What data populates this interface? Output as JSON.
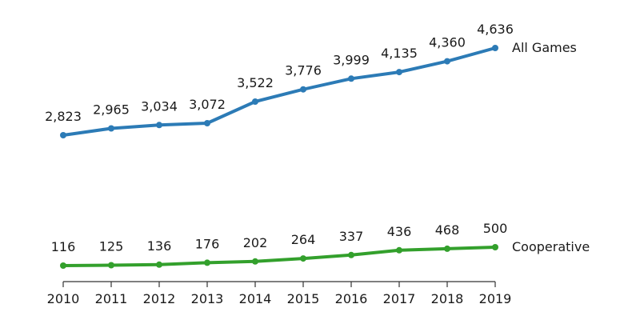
{
  "chart_data": {
    "type": "line",
    "x": [
      2010,
      2011,
      2012,
      2013,
      2014,
      2015,
      2016,
      2017,
      2018,
      2019
    ],
    "x_tick_labels": [
      "2010",
      "2011",
      "2012",
      "2013",
      "2014",
      "2015",
      "2016",
      "2017",
      "2018",
      "2019"
    ],
    "series": [
      {
        "name": "All Games",
        "color": "#2c7bb6",
        "values": [
          2823,
          2965,
          3034,
          3072,
          3522,
          3776,
          3999,
          4135,
          4360,
          4636
        ],
        "labels": [
          "2,823",
          "2,965",
          "3,034",
          "3,072",
          "3,522",
          "3,776",
          "3,999",
          "4,135",
          "4,360",
          "4,636"
        ]
      },
      {
        "name": "Cooperative",
        "color": "#33a02c",
        "values": [
          116,
          125,
          136,
          176,
          202,
          264,
          337,
          436,
          468,
          500
        ],
        "labels": [
          "116",
          "125",
          "136",
          "176",
          "202",
          "264",
          "337",
          "436",
          "468",
          "500"
        ]
      }
    ],
    "title": "",
    "xlabel": "",
    "ylabel": "",
    "legend": "inline at line ends",
    "grid": false
  }
}
